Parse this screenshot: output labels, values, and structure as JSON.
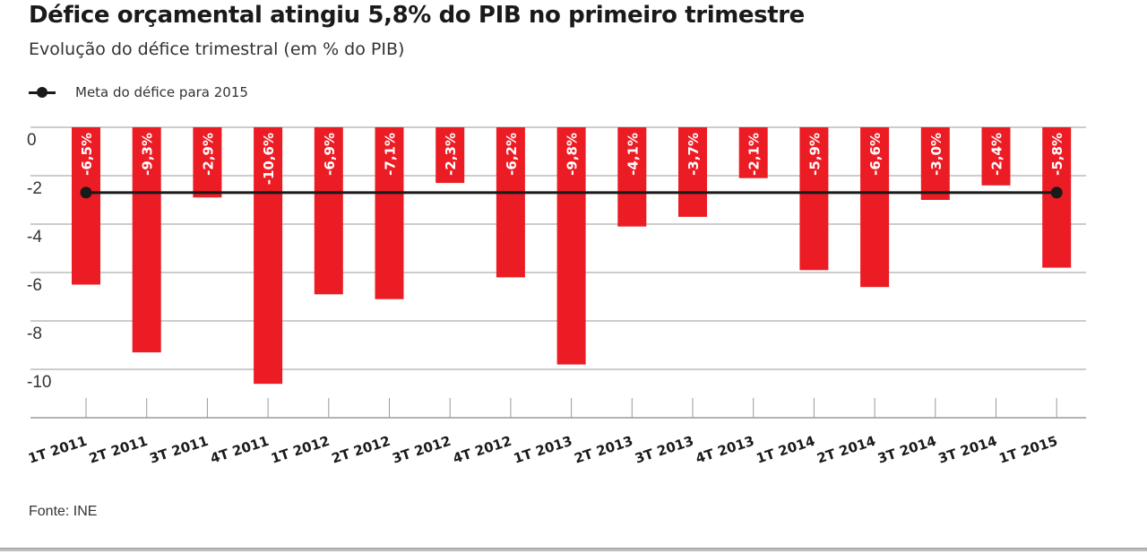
{
  "title": "Défice orçamental atingiu 5,8% do PIB no primeiro trimestre",
  "subtitle": "Evolução do défice trimestral (em % do PIB)",
  "legend": {
    "label": "Meta do défice para 2015"
  },
  "source": "Fonte: INE",
  "colors": {
    "bar": "#ec1c24",
    "target": "#1a1a1a",
    "grid": "#9a9a9a",
    "text": "#333333"
  },
  "chart_data": {
    "type": "bar",
    "categories": [
      "1T 2011",
      "2T 2011",
      "3T 2011",
      "4T 2011",
      "1T 2012",
      "2T 2012",
      "3T 2012",
      "4T 2012",
      "1T 2013",
      "2T 2013",
      "3T 2013",
      "4T 2013",
      "1T 2014",
      "2T 2014",
      "3T 2014",
      "3T 2014",
      "1T 2015"
    ],
    "values": [
      -6.5,
      -9.3,
      -2.9,
      -10.6,
      -6.9,
      -7.1,
      -2.3,
      -6.2,
      -9.8,
      -4.1,
      -3.7,
      -2.1,
      -5.9,
      -6.6,
      -3.0,
      -2.4,
      -5.8
    ],
    "data_labels": [
      "-6,5%",
      "-9,3%",
      "-2,9%",
      "-10,6%",
      "-6,9%",
      "-7,1%",
      "-2,3%",
      "-6,2%",
      "-9,8%",
      "-4,1%",
      "-3,7%",
      "-2,1%",
      "-5,9%",
      "-6,6%",
      "-3,0%",
      "-2,4%",
      "-5,8%"
    ],
    "target_line": {
      "name": "Meta do défice para 2015",
      "value": -2.7
    },
    "y_ticks": [
      "0",
      "-2",
      "-4",
      "-6",
      "-8",
      "-10"
    ],
    "ylim": [
      -12,
      0
    ],
    "grid": true,
    "legend_position": "top-left"
  }
}
